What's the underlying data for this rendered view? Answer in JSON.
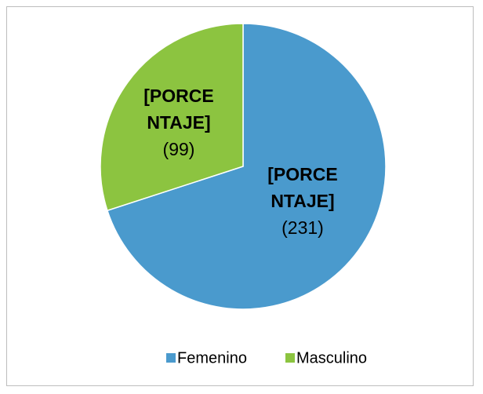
{
  "chart_data": {
    "type": "pie",
    "categories": [
      "Femenino",
      "Masculino"
    ],
    "values": [
      231,
      99
    ],
    "colors": [
      "#4a9acd",
      "#8cc440"
    ],
    "label_placeholder": "[PORCENTAJE]",
    "value_labels": [
      "(231)",
      "(99)"
    ],
    "legend": "bottom"
  }
}
